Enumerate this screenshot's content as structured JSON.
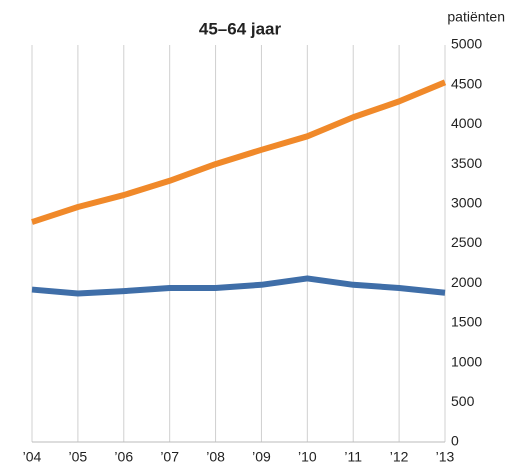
{
  "chart_data": {
    "type": "line",
    "title": "45–64 jaar",
    "y_label": "patiënten",
    "categories": [
      "’04",
      "’05",
      "’06",
      "’07",
      "’08",
      "’09",
      "’10",
      "’11",
      "’12",
      "’13"
    ],
    "series": [
      {
        "color": "#f0892a",
        "values": [
          2770,
          2960,
          3110,
          3290,
          3500,
          3680,
          3850,
          4090,
          4290,
          4530
        ]
      },
      {
        "color": "#3f6ea8",
        "values": [
          1920,
          1870,
          1900,
          1940,
          1940,
          1980,
          2060,
          1980,
          1940,
          1880
        ]
      }
    ],
    "ylim": [
      0,
      5000
    ],
    "yticks": [
      0,
      500,
      1000,
      1500,
      2000,
      2500,
      3000,
      3500,
      4000,
      4500,
      5000
    ],
    "grid": "vertical",
    "y_axis_side": "right"
  }
}
